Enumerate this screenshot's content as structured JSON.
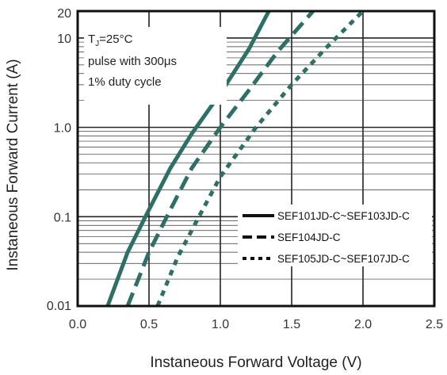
{
  "chart_data": {
    "type": "line",
    "xlabel": "Instaneous Forward Voltage (V)",
    "ylabel": "Instaneous Forward Current (A)",
    "xlim": [
      0.0,
      2.5
    ],
    "ylim": [
      0.01,
      20
    ],
    "yscale": "log",
    "grid": true,
    "x_ticks": [
      "0.0",
      "0.5",
      "1.0",
      "1.5",
      "2.0",
      "2.5"
    ],
    "y_ticks": [
      "0.01",
      "0.1",
      "1.0",
      "10",
      "20"
    ],
    "annotation": {
      "line1_main": "T",
      "line1_sub": "J",
      "line1_rest": "=25°C",
      "line2": "pulse with 300μs",
      "line3": "1% duty cycle"
    },
    "legend_position": "lower-right",
    "series": [
      {
        "name": "SEF101JD-C~SEF103JD-C",
        "style": "solid",
        "color": "#2e6f66",
        "points": [
          [
            0.21,
            0.01
          ],
          [
            0.35,
            0.04
          ],
          [
            0.5,
            0.12
          ],
          [
            0.65,
            0.35
          ],
          [
            0.8,
            0.85
          ],
          [
            1.0,
            2.4
          ],
          [
            1.2,
            7.5
          ],
          [
            1.34,
            20
          ]
        ]
      },
      {
        "name": "SEF104JD-C",
        "style": "dashed",
        "color": "#2e6f66",
        "points": [
          [
            0.35,
            0.01
          ],
          [
            0.5,
            0.04
          ],
          [
            0.65,
            0.12
          ],
          [
            0.8,
            0.35
          ],
          [
            1.0,
            1.0
          ],
          [
            1.2,
            2.6
          ],
          [
            1.4,
            7.0
          ],
          [
            1.65,
            20
          ]
        ]
      },
      {
        "name": "SEF105JD-C~SEF107JD-C",
        "style": "dotted",
        "color": "#2e6f66",
        "points": [
          [
            0.56,
            0.01
          ],
          [
            0.7,
            0.035
          ],
          [
            0.85,
            0.1
          ],
          [
            1.0,
            0.28
          ],
          [
            1.25,
            1.0
          ],
          [
            1.5,
            3.0
          ],
          [
            1.75,
            8.0
          ],
          [
            2.0,
            20
          ]
        ]
      }
    ]
  }
}
